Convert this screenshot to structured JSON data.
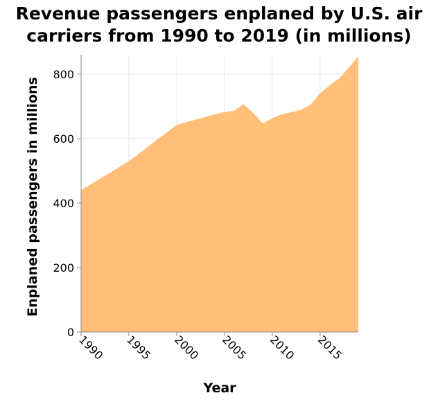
{
  "chart_data": {
    "type": "area",
    "title_lines": [
      "Revenue passengers enplaned by U.S. air",
      "carriers from 1990 to 2019 (in millions)"
    ],
    "xlabel": "Year",
    "ylabel": "Enplaned passengers in millions",
    "xlim": [
      1990,
      2019
    ],
    "ylim": [
      0,
      860
    ],
    "xticks": [
      1990,
      1995,
      2000,
      2005,
      2010,
      2015
    ],
    "yticks": [
      0,
      200,
      400,
      600,
      800
    ],
    "grid": true,
    "legend": "none",
    "fill_color": "#ffbf79",
    "series": [
      {
        "x": [
          1990,
          1991,
          1992,
          1993,
          1994,
          1995,
          1996,
          1997,
          1998,
          1999,
          2000,
          2001,
          2002,
          2003,
          2004,
          2005,
          2006,
          2007,
          2008,
          2009,
          2010,
          2011,
          2012,
          2013,
          2014,
          2015,
          2016,
          2017,
          2018,
          2019
        ],
        "values": [
          440,
          458,
          476,
          494,
          512,
          530,
          552,
          575,
          598,
          620,
          642,
          651,
          659,
          667,
          675,
          683,
          686,
          707,
          680,
          647,
          663,
          675,
          682,
          689,
          705,
          741,
          765,
          787,
          820,
          855
        ]
      }
    ]
  }
}
